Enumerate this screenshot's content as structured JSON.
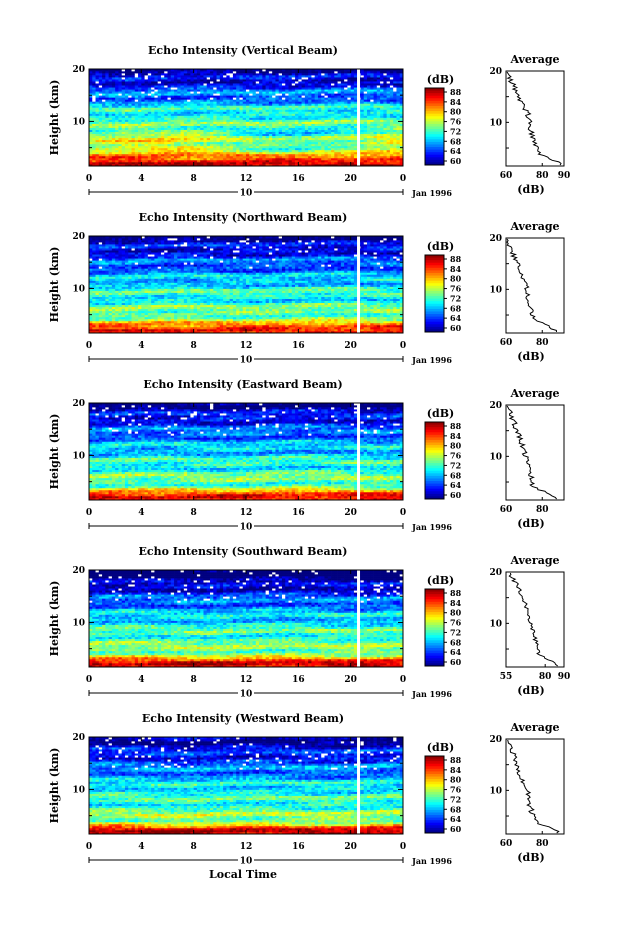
{
  "figure": {
    "xlabel": "Local Time",
    "date_label": "Jan 1996",
    "day_label": "10",
    "x_ticks": [
      "0",
      "4",
      "8",
      "12",
      "16",
      "20",
      "0"
    ],
    "height_label": "Height (km)",
    "height_ticks": [
      "20",
      "10"
    ],
    "colorbar_unit": "(dB)",
    "colorbar_ticks": [
      "88",
      "84",
      "80",
      "76",
      "72",
      "68",
      "64",
      "60"
    ],
    "avg_title": "Average",
    "avg_unit": "(dB)"
  },
  "chart_data": [
    {
      "type": "heatmap",
      "title": "Echo Intensity (Vertical Beam)",
      "xlabel": "Local Time",
      "ylabel": "Height (km)",
      "zlabel": "(dB)",
      "xlim": [
        0,
        24
      ],
      "ylim": [
        1.5,
        20
      ],
      "zlim": [
        60,
        90
      ],
      "x_ticks": [
        0,
        4,
        8,
        12,
        16,
        20,
        24
      ],
      "data_gap_hour": 20.6,
      "profile_title": "Average",
      "profile_xticks": [
        "60",
        "80",
        "90"
      ],
      "profile_xlim": [
        60,
        92
      ],
      "profile": {
        "height": [
          2,
          4,
          6,
          8,
          10,
          12,
          14,
          16,
          18,
          19.5
        ],
        "value": [
          90,
          78,
          76,
          74,
          73,
          72,
          68,
          66,
          63,
          61
        ]
      }
    },
    {
      "type": "heatmap",
      "title": "Echo Intensity (Northward Beam)",
      "xlabel": "Local Time",
      "ylabel": "Height (km)",
      "zlabel": "(dB)",
      "xlim": [
        0,
        24
      ],
      "ylim": [
        1.5,
        20
      ],
      "zlim": [
        60,
        90
      ],
      "x_ticks": [
        0,
        4,
        8,
        12,
        16,
        20,
        24
      ],
      "data_gap_hour": 20.6,
      "profile_title": "Average",
      "profile_xticks": [
        "60",
        "80"
      ],
      "profile_xlim": [
        60,
        92
      ],
      "profile": {
        "height": [
          2,
          4,
          6,
          8,
          10,
          12,
          14,
          16,
          18,
          19.5
        ],
        "value": [
          88,
          76,
          74,
          72,
          72,
          69,
          67,
          65,
          63,
          61
        ]
      }
    },
    {
      "type": "heatmap",
      "title": "Echo Intensity (Eastward Beam)",
      "xlabel": "Local Time",
      "ylabel": "Height (km)",
      "zlabel": "(dB)",
      "xlim": [
        0,
        24
      ],
      "ylim": [
        1.5,
        20
      ],
      "zlim": [
        60,
        90
      ],
      "x_ticks": [
        0,
        4,
        8,
        12,
        16,
        20,
        24
      ],
      "data_gap_hour": 20.6,
      "profile_title": "Average",
      "profile_xticks": [
        "60",
        "80"
      ],
      "profile_xlim": [
        60,
        92
      ],
      "profile": {
        "height": [
          2,
          4,
          6,
          8,
          10,
          12,
          14,
          16,
          18,
          19.5
        ],
        "value": [
          88,
          75,
          74,
          72,
          71,
          69,
          67,
          65,
          63,
          61
        ]
      }
    },
    {
      "type": "heatmap",
      "title": "Echo Intensity (Southward Beam)",
      "xlabel": "Local Time",
      "ylabel": "Height (km)",
      "zlabel": "(dB)",
      "xlim": [
        0,
        24
      ],
      "ylim": [
        1.5,
        20
      ],
      "zlim": [
        60,
        90
      ],
      "x_ticks": [
        0,
        4,
        8,
        12,
        16,
        20,
        24
      ],
      "data_gap_hour": 20.6,
      "profile_title": "Average",
      "profile_xticks": [
        "55",
        "80",
        "90"
      ],
      "profile_xlim": [
        55,
        92
      ],
      "profile": {
        "height": [
          2,
          4,
          6,
          8,
          10,
          12,
          14,
          16,
          18,
          19.5
        ],
        "value": [
          88,
          76,
          74,
          73,
          71,
          69,
          67,
          64,
          61,
          58
        ]
      }
    },
    {
      "type": "heatmap",
      "title": "Echo Intensity (Westward Beam)",
      "xlabel": "Local Time",
      "ylabel": "Height (km)",
      "zlabel": "(dB)",
      "xlim": [
        0,
        24
      ],
      "ylim": [
        1.5,
        20
      ],
      "zlim": [
        60,
        90
      ],
      "x_ticks": [
        0,
        4,
        8,
        12,
        16,
        20,
        24
      ],
      "data_gap_hour": 20.6,
      "profile_title": "Average",
      "profile_xticks": [
        "60",
        "80"
      ],
      "profile_xlim": [
        60,
        92
      ],
      "profile": {
        "height": [
          2,
          4,
          6,
          8,
          10,
          12,
          14,
          16,
          18,
          19.5
        ],
        "value": [
          88,
          76,
          74,
          72,
          72,
          69,
          67,
          65,
          63,
          61
        ]
      }
    }
  ]
}
